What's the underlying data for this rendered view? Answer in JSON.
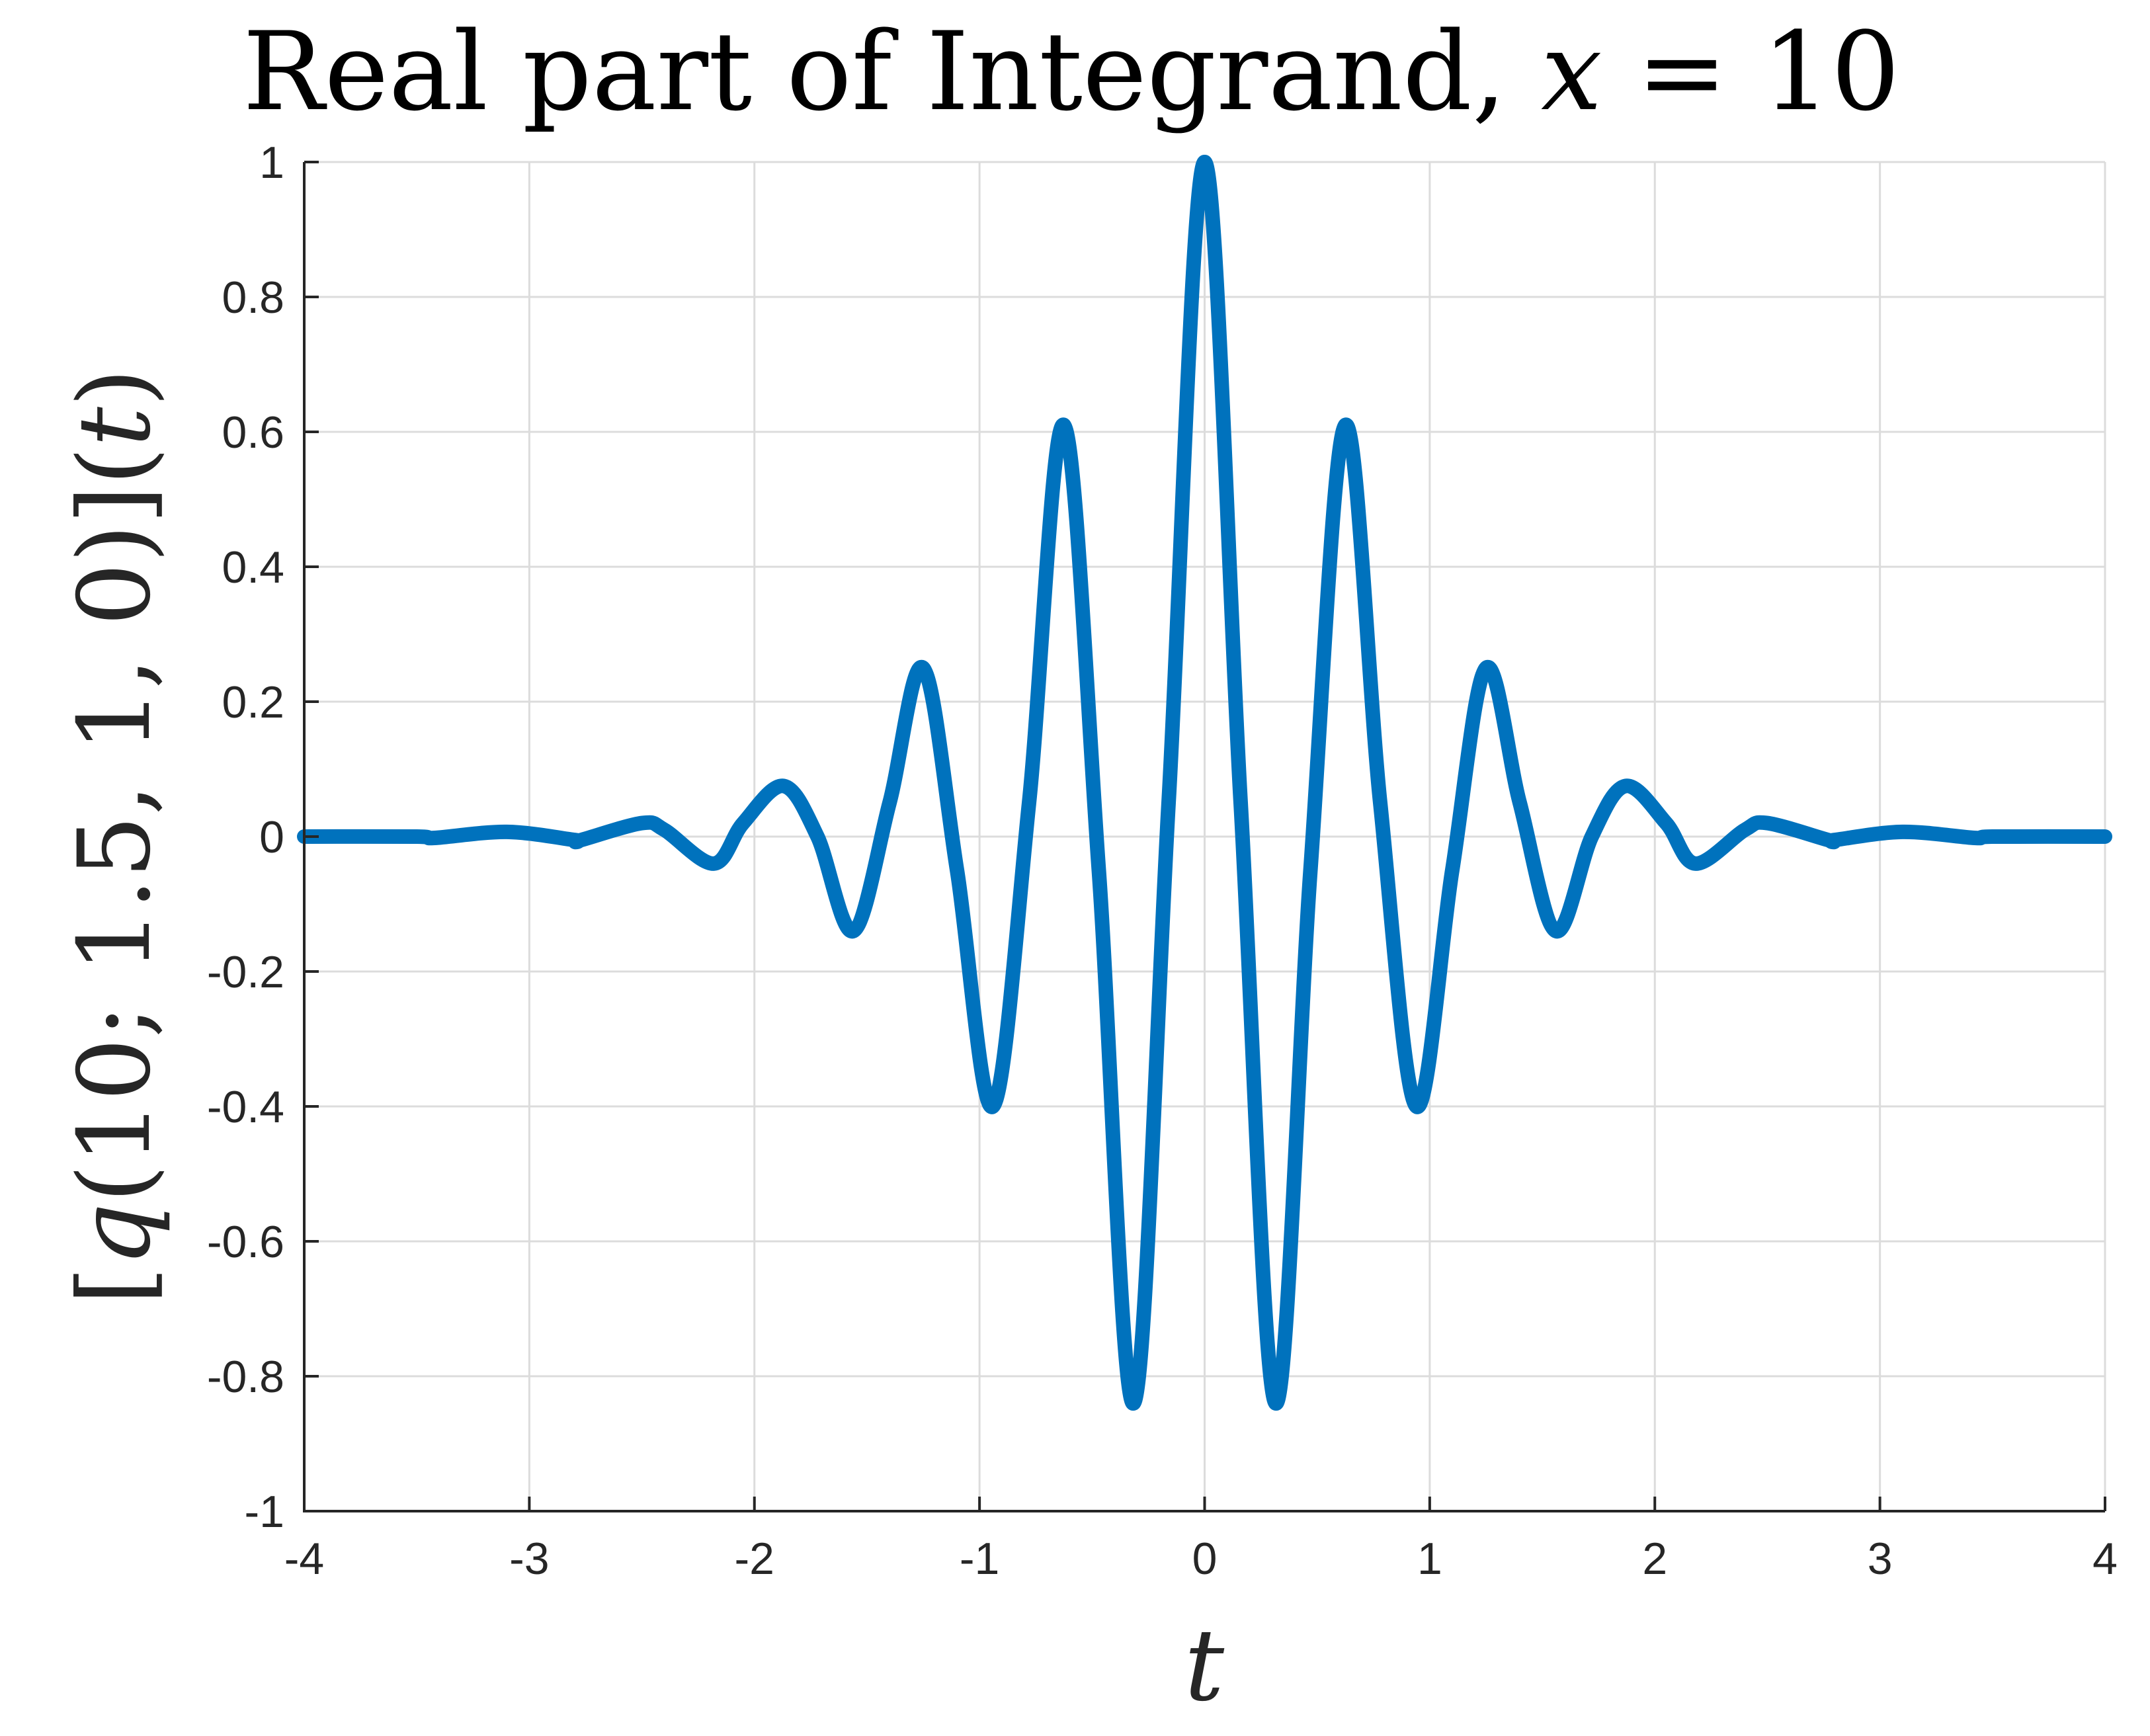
{
  "chart_data": {
    "type": "line",
    "title": {
      "prefix": "Real part of Integrand, ",
      "variable": "x",
      "relation": " = ",
      "value": "10"
    },
    "xlabel": "t",
    "ylabel": {
      "open": "[",
      "func": "q",
      "args": "(10; 1.5, 1, 0)",
      "close": "](",
      "variable": "t",
      "end": ")"
    },
    "xlim": [
      -4,
      4
    ],
    "ylim": [
      -1,
      1
    ],
    "xticks": [
      -4,
      -3,
      -2,
      -1,
      0,
      1,
      2,
      3,
      4
    ],
    "xtick_labels": [
      "-4",
      "-3",
      "-2",
      "-1",
      "0",
      "1",
      "2",
      "3",
      "4"
    ],
    "yticks": [
      -1,
      -0.8,
      -0.6,
      -0.4,
      -0.2,
      0,
      0.2,
      0.4,
      0.6,
      0.8,
      1
    ],
    "ytick_labels": [
      "-1",
      "-0.8",
      "-0.6",
      "-0.4",
      "-0.2",
      "0",
      "0.2",
      "0.4",
      "0.6",
      "0.8",
      "1"
    ],
    "grid": true,
    "series": [
      {
        "color": "#0072BD",
        "x": [
          -4,
          -3.5,
          -3.42,
          -3.1,
          -2.8,
          -2.78,
          -2.5,
          -2.4,
          -2.18,
          -2.05,
          -1.87,
          -1.72,
          -1.56,
          -1.4,
          -1.25,
          -1.1,
          -0.94,
          -0.78,
          -0.625,
          -0.47,
          -0.315,
          -0.16,
          0,
          0.16,
          0.315,
          0.47,
          0.625,
          0.78,
          0.94,
          1.1,
          1.25,
          1.4,
          1.56,
          1.72,
          1.87,
          2.05,
          2.18,
          2.4,
          2.5,
          2.78,
          2.8,
          3.1,
          3.42,
          3.5,
          4
        ],
        "y": [
          0,
          0,
          -0.002,
          0.007,
          -0.005,
          -0.006,
          0.02,
          0.01,
          -0.04,
          0.02,
          0.075,
          0.0,
          -0.14,
          0.05,
          0.25,
          -0.05,
          -0.4,
          0.05,
          0.61,
          -0.05,
          -0.84,
          0.05,
          1.0,
          0.05,
          -0.84,
          -0.05,
          0.61,
          0.05,
          -0.4,
          -0.05,
          0.25,
          0.05,
          -0.14,
          0.0,
          0.075,
          0.02,
          -0.04,
          0.01,
          0.02,
          -0.006,
          -0.005,
          0.007,
          -0.002,
          0,
          0
        ]
      }
    ]
  }
}
